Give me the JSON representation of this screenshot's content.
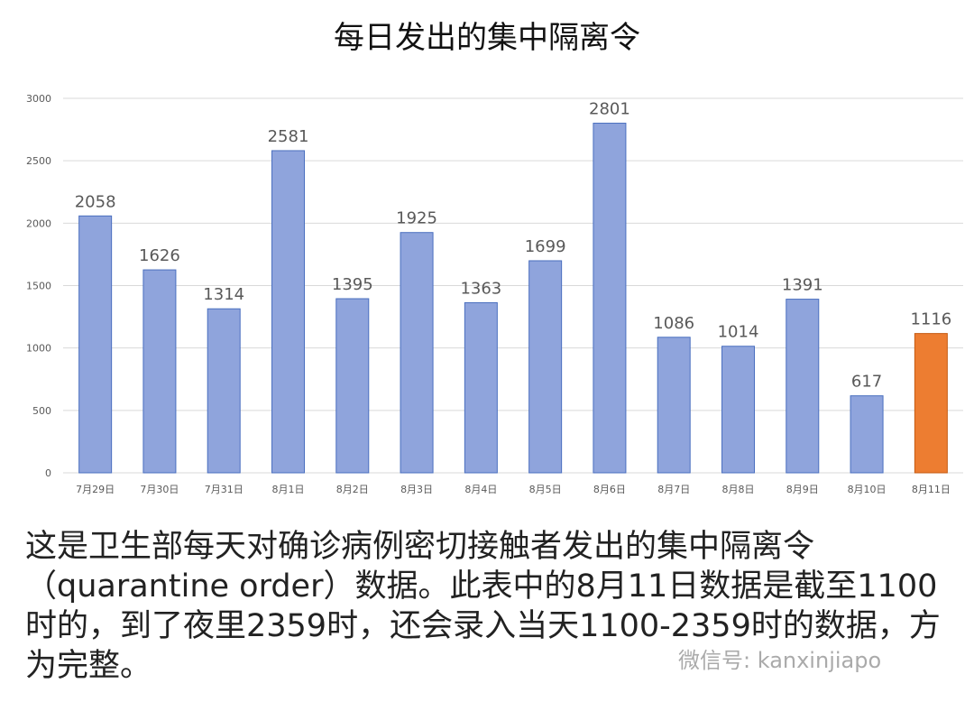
{
  "chart_data": {
    "type": "bar",
    "title": "每日发出的集中隔离令",
    "categories": [
      "7月29日",
      "7月30日",
      "7月31日",
      "8月1日",
      "8月2日",
      "8月3日",
      "8月4日",
      "8月5日",
      "8月6日",
      "8月7日",
      "8月8日",
      "8月9日",
      "8月10日",
      "8月11日"
    ],
    "values": [
      2058,
      1626,
      1314,
      2581,
      1395,
      1925,
      1363,
      1699,
      2801,
      1086,
      1014,
      1391,
      617,
      1116
    ],
    "ylim": [
      0,
      3000
    ],
    "yticks": [
      0,
      500,
      1000,
      1500,
      2000,
      2500,
      3000
    ],
    "grid": true,
    "colors": {
      "default": "#8fa4dc",
      "highlight": "#ed7d31",
      "border": "#4a6fbf"
    },
    "highlight_index": 13
  },
  "caption": "这是卫生部每天对确诊病例密切接触者发出的集中隔离令（quarantine order）数据。此表中的8月11日数据是截至1100时的，到了夜里2359时，还会录入当天1100-2359时的数据，方为完整。",
  "watermark": "微信号: kanxinjiapo"
}
